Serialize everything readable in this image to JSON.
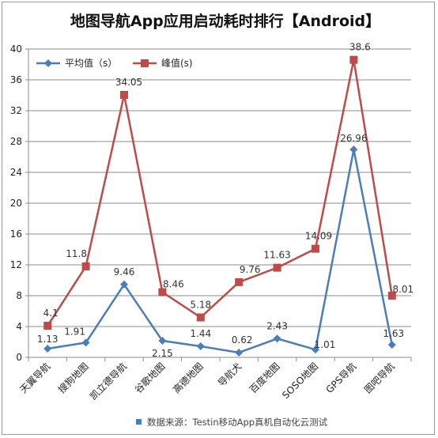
{
  "chart_data": {
    "type": "line",
    "title": "地图导航App应用启动耗时排行【Android】",
    "categories": [
      "天翼导航",
      "搜狗地图",
      "凯立德导航",
      "谷歌地图",
      "高德地图",
      "导航犬",
      "百度地图",
      "SOSO地图",
      "GPS导航",
      "图吧导航"
    ],
    "series": [
      {
        "name": "平均值（s）",
        "color": "#4a7ebb",
        "marker": "diamond",
        "values": [
          1.13,
          1.91,
          9.46,
          2.15,
          1.44,
          0.62,
          2.43,
          1.01,
          26.96,
          1.63
        ],
        "labels": [
          "1.13",
          "1.91",
          "9.46",
          "2.15",
          "1.44",
          "0.62",
          "2.43",
          "1.01",
          "26.96",
          "1.63"
        ]
      },
      {
        "name": "峰值(s)",
        "color": "#be4b48",
        "marker": "square",
        "values": [
          4.1,
          11.8,
          34.05,
          8.46,
          5.18,
          9.76,
          11.63,
          14.09,
          38.6,
          8.01
        ],
        "labels": [
          "4.1",
          "11.8",
          "34.05",
          "8.46",
          "5.18",
          "9.76",
          "11.63",
          "14.09",
          "38.6",
          "8.01"
        ]
      }
    ],
    "y_ticks": [
      "0",
      "4",
      "8",
      "12",
      "16",
      "20",
      "24",
      "28",
      "32",
      "36",
      "40"
    ],
    "ylim": [
      0,
      40
    ],
    "grid": true,
    "legend": "top-left",
    "source": "数据来源：Testin移动App真机自动化云测试",
    "source_marker_color": "#4a7ebb"
  }
}
